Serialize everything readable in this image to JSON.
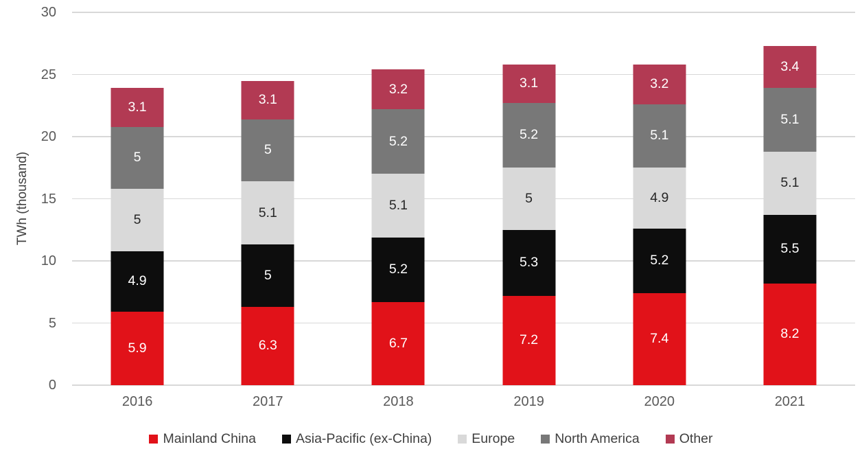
{
  "chart_data": {
    "type": "bar",
    "stacked": true,
    "title": "",
    "xlabel": "",
    "ylabel": "TWh (thousand)",
    "ylim": [
      0,
      30
    ],
    "y_ticks": [
      0,
      5,
      10,
      15,
      20,
      25,
      30
    ],
    "grid": true,
    "legend_position": "bottom",
    "categories": [
      "2016",
      "2017",
      "2018",
      "2019",
      "2020",
      "2021"
    ],
    "series": [
      {
        "name": "Mainland China",
        "color": "#e11219",
        "label_color": "#ffffff",
        "values": [
          5.9,
          6.3,
          6.7,
          7.2,
          7.4,
          8.2
        ],
        "labels": [
          "5.9",
          "6.3",
          "6.7",
          "7.2",
          "7.4",
          "8.2"
        ]
      },
      {
        "name": "Asia-Pacific (ex-China)",
        "color": "#0d0d0d",
        "label_color": "#ffffff",
        "values": [
          4.9,
          5,
          5.2,
          5.3,
          5.2,
          5.5
        ],
        "labels": [
          "4.9",
          "5",
          "5.2",
          "5.3",
          "5.2",
          "5.5"
        ]
      },
      {
        "name": "Europe",
        "color": "#d9d9d9",
        "label_color": "#262626",
        "values": [
          5,
          5.1,
          5.1,
          5,
          4.9,
          5.1
        ],
        "labels": [
          "5",
          "5.1",
          "5.1",
          "5",
          "4.9",
          "5.1"
        ]
      },
      {
        "name": "North America",
        "color": "#787878",
        "label_color": "#ffffff",
        "values": [
          5,
          5,
          5.2,
          5.2,
          5.1,
          5.1
        ],
        "labels": [
          "5",
          "5",
          "5.2",
          "5.2",
          "5.1",
          "5.1"
        ]
      },
      {
        "name": "Other",
        "color": "#b23a53",
        "label_color": "#ffffff",
        "values": [
          3.1,
          3.1,
          3.2,
          3.1,
          3.2,
          3.4
        ],
        "labels": [
          "3.1",
          "3.1",
          "3.2",
          "3.1",
          "3.2",
          "3.4"
        ]
      }
    ]
  }
}
